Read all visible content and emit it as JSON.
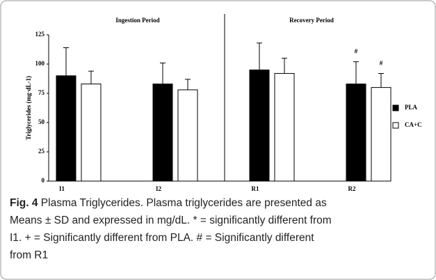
{
  "chart_data": {
    "type": "bar",
    "periods": [
      "Ingestion Period",
      "Recovery Period"
    ],
    "y_label": "Triglycerides (mg·dL-1)",
    "categories": [
      "I1",
      "I2",
      "R1",
      "R2"
    ],
    "series": [
      {
        "name": "PLA",
        "color": "#000000",
        "values": [
          90,
          83,
          95,
          83
        ],
        "errors": [
          24,
          18,
          23,
          19
        ]
      },
      {
        "name": "CA+C",
        "color": "#ffffff",
        "values": [
          83,
          78,
          92,
          80
        ],
        "errors": [
          11,
          9,
          13,
          12
        ]
      }
    ],
    "annotations": [
      {
        "text": "#",
        "category": 3,
        "series": 0
      },
      {
        "text": "#",
        "category": 3,
        "series": 1
      }
    ],
    "ylim": [
      0,
      125
    ],
    "yticks": [
      0,
      25,
      50,
      75,
      100,
      125
    ],
    "grid": false
  },
  "caption": {
    "label": "Fig. 4",
    "lines": [
      " Plasma Triglycerides. Plasma triglycerides are presented as",
      "Means ± SD and expressed in mg/dL. * = significantly different from",
      "I1. + = Significantly different from PLA. # = Significantly different",
      "from R1"
    ]
  }
}
